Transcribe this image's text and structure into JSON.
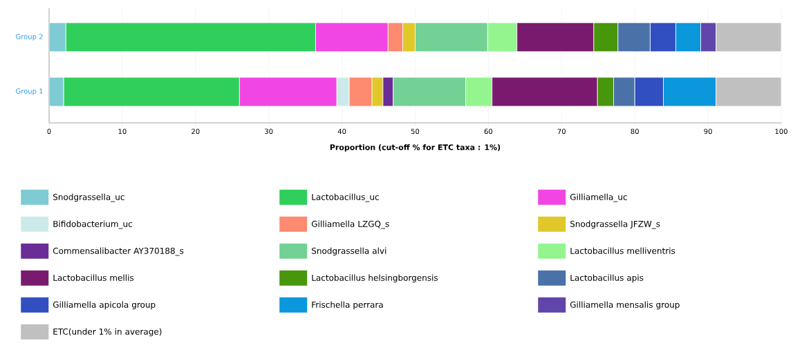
{
  "chart_data": {
    "type": "bar",
    "orientation": "horizontal",
    "stacked": true,
    "categories": [
      "Group 2",
      "Group 1"
    ],
    "xlabel": "Proportion (cut-off % for ETC taxa : 1%)",
    "xlim": [
      0,
      100
    ],
    "xticks": [
      0,
      10,
      20,
      30,
      40,
      50,
      60,
      70,
      80,
      90,
      100
    ],
    "grid": "x",
    "legend": "bottom",
    "series": [
      {
        "name": "Snodgrassella_uc",
        "color": "#7ecbd3",
        "values": [
          2.3,
          2.0
        ]
      },
      {
        "name": "Lactobacillus_uc",
        "color": "#30cf5c",
        "values": [
          34.1,
          24.0
        ]
      },
      {
        "name": "Gilliamella_uc",
        "color": "#f246e4",
        "values": [
          9.9,
          13.3
        ]
      },
      {
        "name": "Bifidobacterium_uc",
        "color": "#cdeaea",
        "values": [
          0,
          1.7
        ]
      },
      {
        "name": "Gilliamella LZGQ_s",
        "color": "#fe8a70",
        "values": [
          2.0,
          3.1
        ]
      },
      {
        "name": "Snodgrassella JFZW_s",
        "color": "#e0c82a",
        "values": [
          1.7,
          1.5
        ]
      },
      {
        "name": "Commensalibacter AY370188_s",
        "color": "#6a2c96",
        "values": [
          0,
          1.4
        ]
      },
      {
        "name": "Snodgrassella alvi",
        "color": "#73d195",
        "values": [
          9.9,
          9.9
        ]
      },
      {
        "name": "Lactobacillus melliventris",
        "color": "#94f58e",
        "values": [
          4.0,
          3.6
        ]
      },
      {
        "name": "Lactobacillus mellis",
        "color": "#7a1a6e",
        "values": [
          10.5,
          14.4
        ]
      },
      {
        "name": "Lactobacillus helsingborgensis",
        "color": "#47960c",
        "values": [
          3.3,
          2.2
        ]
      },
      {
        "name": "Lactobacillus apis",
        "color": "#4a72a8",
        "values": [
          4.4,
          2.9
        ]
      },
      {
        "name": "Gilliamella apicola group",
        "color": "#314fc0",
        "values": [
          3.5,
          3.9
        ]
      },
      {
        "name": "Frischella perrara",
        "color": "#0a97dc",
        "values": [
          3.4,
          7.2
        ]
      },
      {
        "name": "Gilliamella mensalis group",
        "color": "#6045aa",
        "values": [
          2.1,
          0
        ]
      },
      {
        "name": "ETC(under 1% in average)",
        "color": "#c0c0c0",
        "values": [
          8.9,
          8.9
        ]
      }
    ]
  }
}
